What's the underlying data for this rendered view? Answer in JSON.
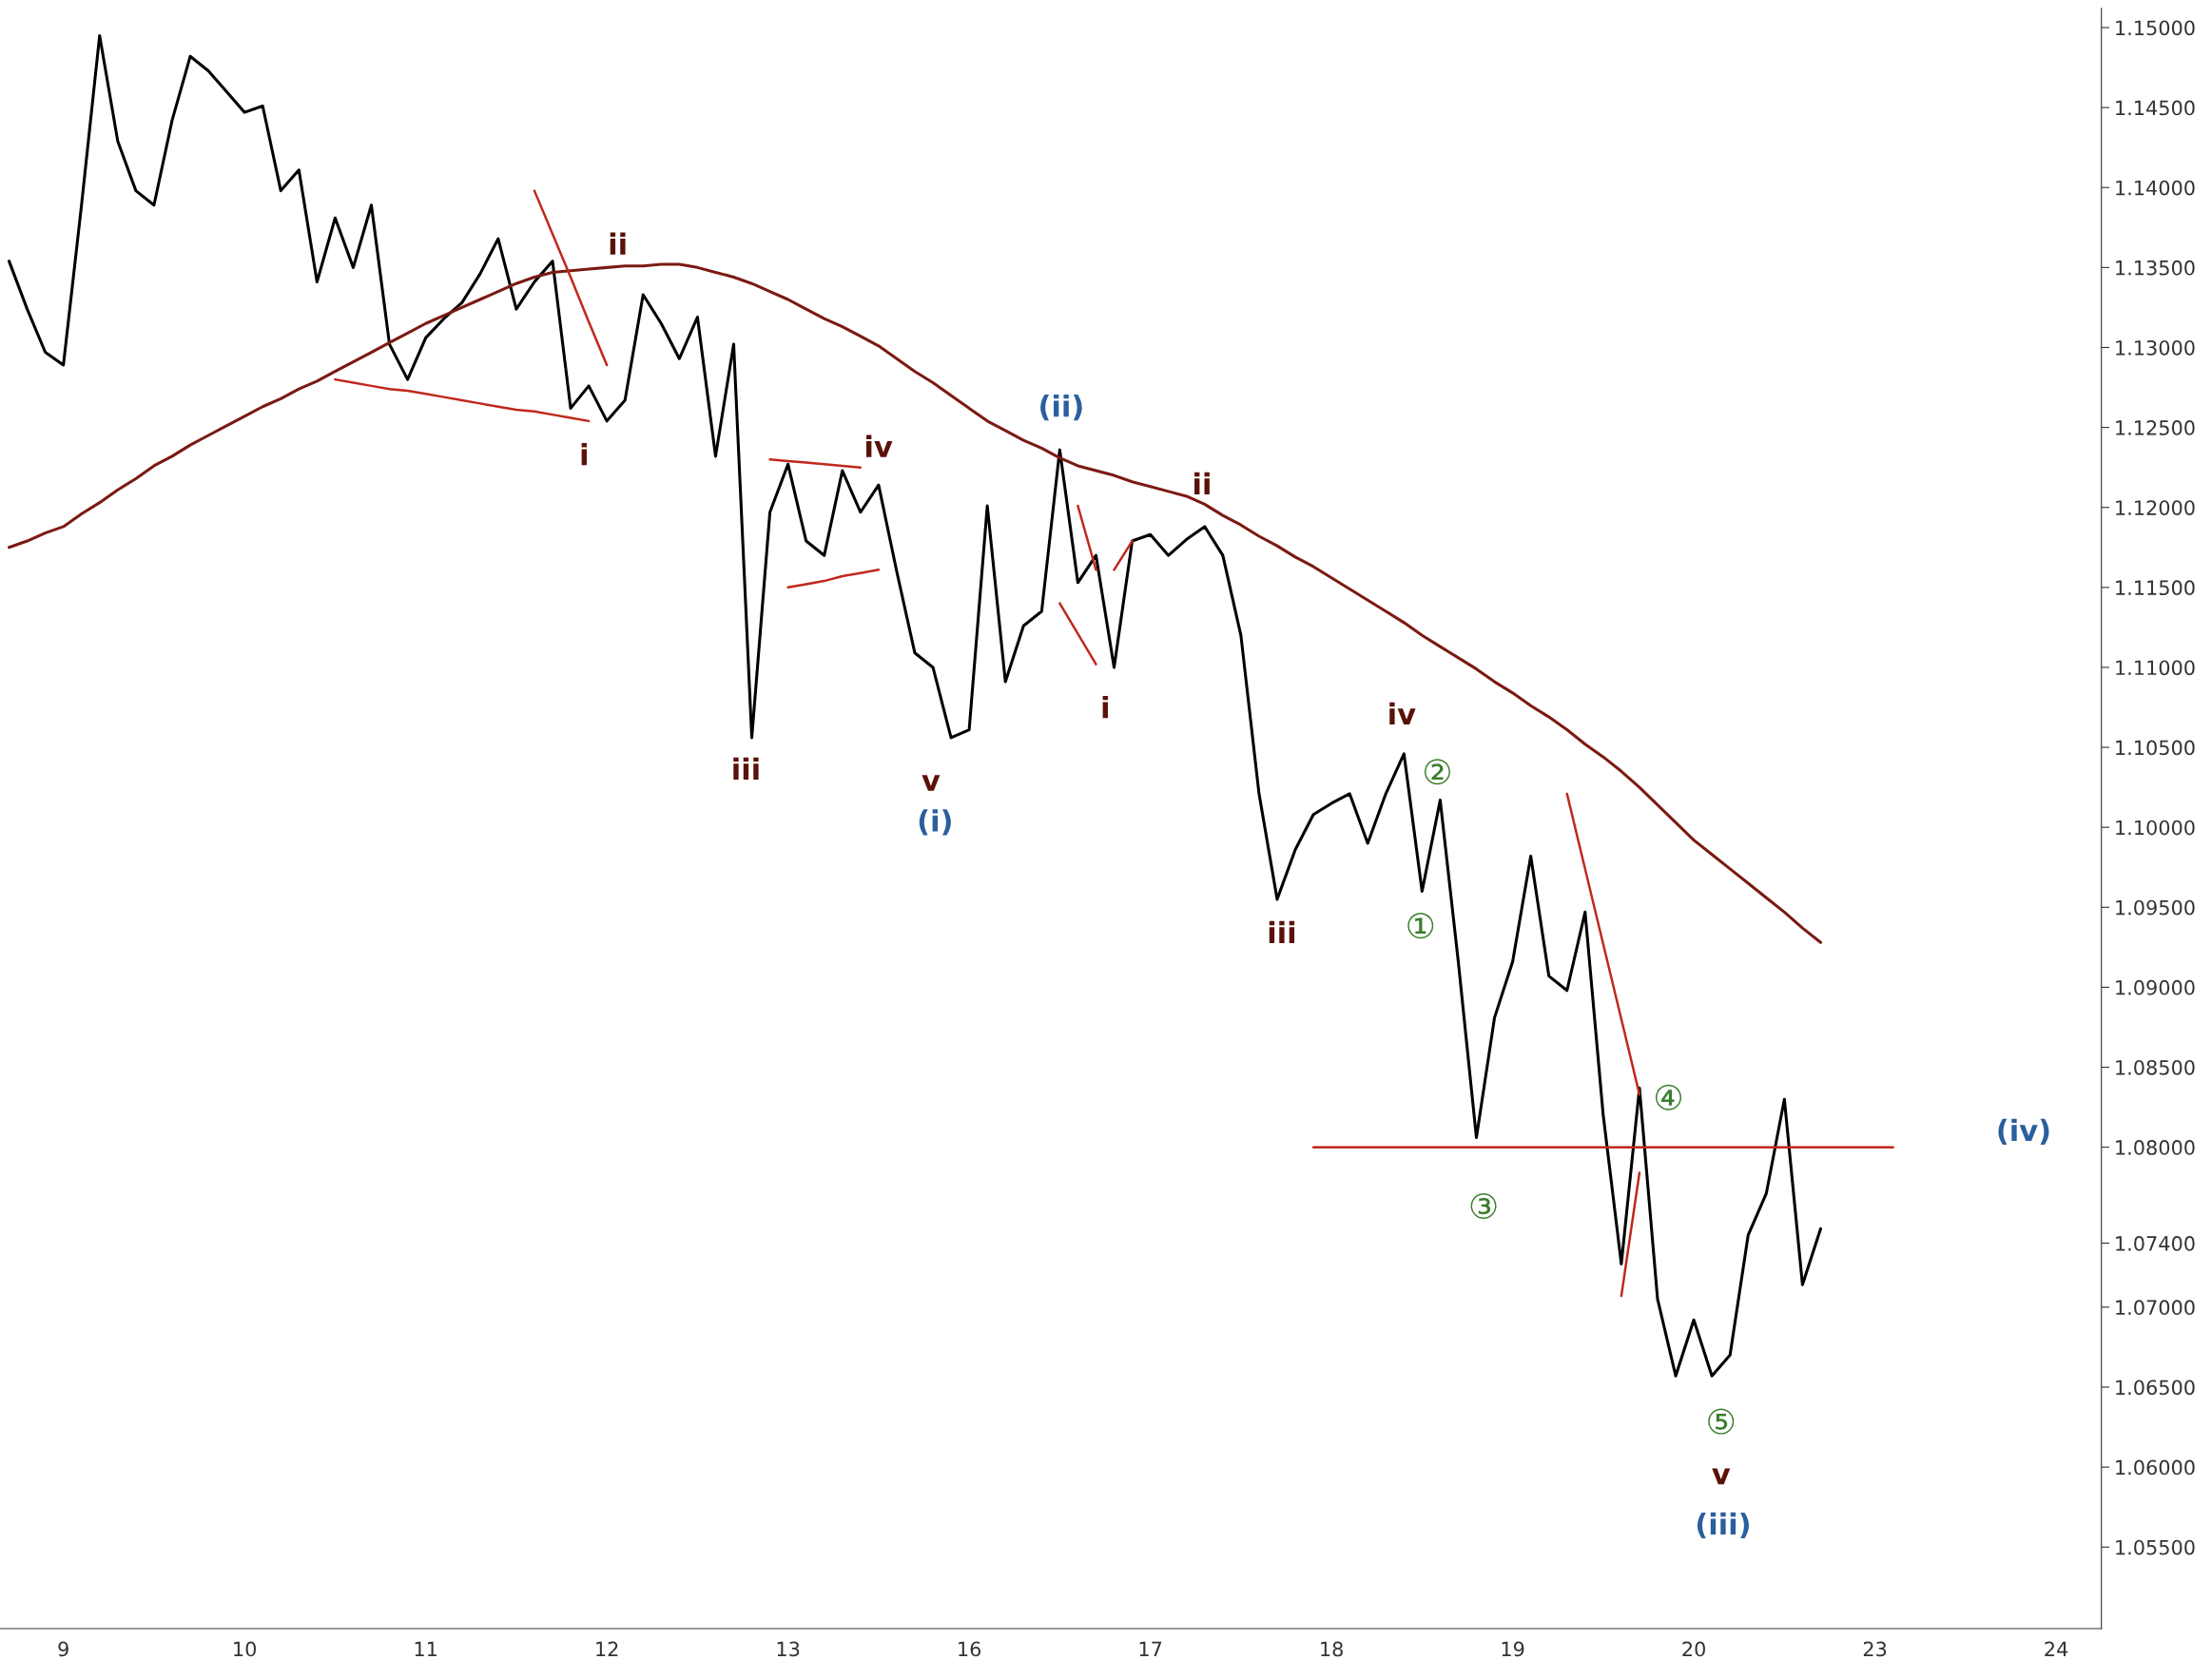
{
  "chart_data": {
    "type": "line",
    "legend": false,
    "grid": false,
    "ylim": [
      1.0499,
      1.1512
    ],
    "categories": [
      null,
      null,
      null,
      "9",
      null,
      null,
      null,
      null,
      null,
      null,
      null,
      null,
      null,
      "10",
      null,
      null,
      null,
      null,
      null,
      null,
      null,
      null,
      null,
      "11",
      null,
      null,
      null,
      null,
      null,
      null,
      null,
      null,
      null,
      "12",
      null,
      null,
      null,
      null,
      null,
      null,
      null,
      null,
      null,
      "13",
      null,
      null,
      null,
      null,
      null,
      null,
      null,
      null,
      null,
      "16",
      null,
      null,
      null,
      null,
      null,
      null,
      null,
      null,
      null,
      "17",
      null,
      null,
      null,
      null,
      null,
      null,
      null,
      null,
      null,
      "18",
      null,
      null,
      null,
      null,
      null,
      null,
      null,
      null,
      null,
      "19",
      null,
      null,
      null,
      null,
      null,
      null,
      null,
      null,
      null,
      "20",
      null,
      null,
      null,
      null,
      null,
      null,
      null,
      null,
      null,
      "23",
      null,
      null,
      null,
      null,
      null,
      null,
      null,
      null,
      null,
      "24",
      null,
      null
    ],
    "yticks": [
      {
        "value": 1.055,
        "label": "1.05500"
      },
      {
        "value": 1.06,
        "label": "1.06000"
      },
      {
        "value": 1.065,
        "label": "1.06500"
      },
      {
        "value": 1.07,
        "label": "1.07000"
      },
      {
        "value": 1.074,
        "label": "1.07400"
      },
      {
        "value": 1.08,
        "label": "1.08000"
      },
      {
        "value": 1.085,
        "label": "1.08500"
      },
      {
        "value": 1.09,
        "label": "1.09000"
      },
      {
        "value": 1.095,
        "label": "1.09500"
      },
      {
        "value": 1.1,
        "label": "1.10000"
      },
      {
        "value": 1.105,
        "label": "1.10500"
      },
      {
        "value": 1.11,
        "label": "1.11000"
      },
      {
        "value": 1.115,
        "label": "1.11500"
      },
      {
        "value": 1.12,
        "label": "1.12000"
      },
      {
        "value": 1.125,
        "label": "1.12500"
      },
      {
        "value": 1.13,
        "label": "1.13000"
      },
      {
        "value": 1.135,
        "label": "1.13500"
      },
      {
        "value": 1.14,
        "label": "1.14000"
      },
      {
        "value": 1.145,
        "label": "1.14500"
      },
      {
        "value": 1.15,
        "label": "1.15000"
      }
    ],
    "series": [
      {
        "color": "#000000",
        "values": [
          1.1354,
          1.1324,
          1.1297,
          1.1289,
          1.1389,
          1.1495,
          1.1429,
          1.1398,
          1.1389,
          1.1442,
          1.1482,
          1.1473,
          1.146,
          1.1447,
          1.1451,
          1.1398,
          1.1411,
          1.1341,
          1.1381,
          1.135,
          1.1389,
          1.1302,
          1.128,
          1.1306,
          1.1318,
          1.1328,
          1.1346,
          1.1368,
          1.1324,
          1.1341,
          1.1354,
          1.1262,
          1.1276,
          1.1254,
          1.1267,
          1.1333,
          1.1315,
          1.1293,
          1.1319,
          1.1232,
          1.1302,
          1.1056,
          1.1197,
          1.1227,
          1.1179,
          1.117,
          1.1223,
          1.1197,
          1.1214,
          1.116,
          1.1109,
          1.11,
          1.1056,
          1.1061,
          1.1201,
          1.1091,
          1.1126,
          1.1135,
          1.1236,
          1.1153,
          1.117,
          1.11,
          1.1179,
          1.1183,
          1.117,
          1.118,
          1.1188,
          1.117,
          1.112,
          1.1021,
          1.0955,
          1.0986,
          1.1008,
          1.1015,
          1.1021,
          1.099,
          1.1021,
          1.1046,
          1.096,
          1.1017,
          1.0916,
          1.0806,
          1.0881,
          1.0916,
          1.0982,
          1.0907,
          1.0898,
          1.0947,
          1.082,
          1.0727,
          1.0837,
          1.0705,
          1.0657,
          1.0692,
          1.0657,
          1.067,
          1.0745,
          1.0771,
          1.083,
          1.0714,
          1.0749,
          null,
          null,
          null,
          null,
          null,
          null,
          null,
          null,
          null,
          null,
          null,
          null,
          null,
          null,
          null
        ]
      },
      {
        "color": "#7b1a12",
        "values": [
          1.1175,
          1.1179,
          1.1184,
          1.1188,
          1.1196,
          1.1203,
          1.1211,
          1.1218,
          1.1226,
          1.1232,
          1.1239,
          1.1245,
          1.1251,
          1.1257,
          1.1263,
          1.1268,
          1.1274,
          1.1279,
          1.1285,
          1.1291,
          1.1297,
          1.1303,
          1.1309,
          1.1315,
          1.132,
          1.1325,
          1.133,
          1.1335,
          1.134,
          1.1344,
          1.1347,
          1.1348,
          1.1349,
          1.135,
          1.1351,
          1.1351,
          1.1352,
          1.1352,
          1.135,
          1.1347,
          1.1344,
          1.134,
          1.1335,
          1.133,
          1.1324,
          1.1318,
          1.1313,
          1.1307,
          1.1301,
          1.1293,
          1.1285,
          1.1278,
          1.127,
          1.1262,
          1.1254,
          1.1248,
          1.1242,
          1.1237,
          1.1231,
          1.1226,
          1.1223,
          1.122,
          1.1216,
          1.1213,
          1.121,
          1.1207,
          1.1202,
          1.1195,
          1.1189,
          1.1182,
          1.1176,
          1.1169,
          1.1163,
          1.1156,
          1.1149,
          1.1142,
          1.1135,
          1.1128,
          1.112,
          1.1113,
          1.1106,
          1.1099,
          1.1091,
          1.1084,
          1.1076,
          1.1069,
          1.1061,
          1.1052,
          1.1044,
          1.1035,
          1.1025,
          1.1014,
          1.1003,
          1.0992,
          1.0983,
          1.0974,
          1.0965,
          1.0956,
          1.0947,
          1.0937,
          1.0928,
          null,
          null,
          null,
          null,
          null,
          null,
          null,
          null,
          null,
          null,
          null,
          null,
          null,
          null,
          null
        ]
      },
      {
        "color": "#c0281c",
        "values": [
          null,
          null,
          null,
          null,
          null,
          null,
          null,
          null,
          null,
          null,
          null,
          null,
          null,
          null,
          null,
          null,
          null,
          null,
          null,
          null,
          null,
          null,
          null,
          null,
          null,
          null,
          null,
          null,
          null,
          1.1398,
          1.1371,
          1.1344,
          1.1316,
          1.1289,
          null,
          null,
          null,
          null,
          null,
          null,
          null,
          null,
          null,
          null,
          null,
          null,
          null,
          null,
          null,
          null,
          null,
          null,
          null,
          null,
          null,
          null,
          null,
          null,
          null,
          null,
          null,
          null,
          null,
          null,
          null,
          null,
          null,
          null,
          null,
          null,
          null,
          null,
          null,
          null,
          null,
          null,
          null,
          null,
          null,
          null,
          null,
          null,
          null,
          null,
          null,
          null,
          null,
          null,
          null,
          null,
          null,
          null,
          null,
          null,
          null,
          null,
          null,
          null,
          null,
          null,
          null,
          null,
          null,
          null,
          null,
          null,
          null,
          null,
          null,
          null,
          null,
          null,
          null,
          null,
          null,
          null
        ]
      },
      {
        "color": "#c0281c",
        "values": [
          null,
          null,
          null,
          null,
          null,
          null,
          null,
          null,
          null,
          null,
          null,
          null,
          null,
          null,
          null,
          null,
          null,
          null,
          1.128,
          1.1278,
          1.1276,
          1.1274,
          1.1273,
          1.1271,
          1.1269,
          1.1267,
          1.1265,
          1.1263,
          1.1261,
          1.126,
          1.1258,
          1.1256,
          1.1254,
          null,
          null,
          null,
          null,
          null,
          null,
          null,
          null,
          null,
          null,
          null,
          null,
          null,
          null,
          null,
          null,
          null,
          null,
          null,
          null,
          null,
          null,
          null,
          null,
          null,
          null,
          null,
          null,
          null,
          null,
          null,
          null,
          null,
          null,
          null,
          null,
          null,
          null,
          null,
          null,
          null,
          null,
          null,
          null,
          null,
          null,
          null,
          null,
          null,
          null,
          null,
          null,
          null,
          null,
          null,
          null,
          null,
          null,
          null,
          null,
          null,
          null,
          null,
          null,
          null,
          null,
          null,
          null,
          null,
          null,
          null,
          null,
          null,
          null,
          null,
          null,
          null,
          null,
          null,
          null,
          null,
          null,
          null
        ]
      },
      {
        "color": "#c0281c",
        "values": [
          null,
          null,
          null,
          null,
          null,
          null,
          null,
          null,
          null,
          null,
          null,
          null,
          null,
          null,
          null,
          null,
          null,
          null,
          null,
          null,
          null,
          null,
          null,
          null,
          null,
          null,
          null,
          null,
          null,
          null,
          null,
          null,
          null,
          null,
          null,
          null,
          null,
          null,
          null,
          null,
          null,
          null,
          1.123,
          1.1229,
          1.1228,
          1.1227,
          1.1226,
          1.1225,
          null,
          null,
          null,
          null,
          null,
          null,
          null,
          null,
          null,
          null,
          null,
          null,
          null,
          null,
          null,
          null,
          null,
          null,
          null,
          null,
          null,
          null,
          null,
          null,
          null,
          null,
          null,
          null,
          null,
          null,
          null,
          null,
          null,
          null,
          null,
          null,
          null,
          null,
          null,
          null,
          null,
          null,
          null,
          null,
          null,
          null,
          null,
          null,
          null,
          null,
          null,
          null,
          null,
          null,
          null,
          null,
          null,
          null,
          null,
          null,
          null,
          null,
          null,
          null,
          null,
          null,
          null,
          null
        ]
      },
      {
        "color": "#c0281c",
        "values": [
          null,
          null,
          null,
          null,
          null,
          null,
          null,
          null,
          null,
          null,
          null,
          null,
          null,
          null,
          null,
          null,
          null,
          null,
          null,
          null,
          null,
          null,
          null,
          null,
          null,
          null,
          null,
          null,
          null,
          null,
          null,
          null,
          null,
          null,
          null,
          null,
          null,
          null,
          null,
          null,
          null,
          null,
          null,
          1.115,
          1.1152,
          1.1154,
          1.1157,
          1.1159,
          1.1161,
          null,
          null,
          null,
          null,
          null,
          null,
          null,
          null,
          null,
          null,
          null,
          null,
          null,
          null,
          null,
          null,
          null,
          null,
          null,
          null,
          null,
          null,
          null,
          null,
          null,
          null,
          null,
          null,
          null,
          null,
          null,
          null,
          null,
          null,
          null,
          null,
          null,
          null,
          null,
          null,
          null,
          null,
          null,
          null,
          null,
          null,
          null,
          null,
          null,
          null,
          null,
          null,
          null,
          null,
          null,
          null,
          null,
          null,
          null,
          null,
          null,
          null,
          null,
          null,
          null,
          null,
          null
        ]
      },
      {
        "color": "#c0281c",
        "values": [
          null,
          null,
          null,
          null,
          null,
          null,
          null,
          null,
          null,
          null,
          null,
          null,
          null,
          null,
          null,
          null,
          null,
          null,
          null,
          null,
          null,
          null,
          null,
          null,
          null,
          null,
          null,
          null,
          null,
          null,
          null,
          null,
          null,
          null,
          null,
          null,
          null,
          null,
          null,
          null,
          null,
          null,
          null,
          null,
          null,
          null,
          null,
          null,
          null,
          null,
          null,
          null,
          null,
          null,
          null,
          null,
          null,
          null,
          null,
          1.1201,
          1.1161,
          null,
          null,
          null,
          null,
          null,
          null,
          null,
          null,
          null,
          null,
          null,
          null,
          null,
          null,
          null,
          null,
          null,
          null,
          null,
          null,
          null,
          null,
          null,
          null,
          null,
          null,
          null,
          null,
          null,
          null,
          null,
          null,
          null,
          null,
          null,
          null,
          null,
          null,
          null,
          null,
          null,
          null,
          null,
          null,
          null,
          null,
          null,
          null,
          null,
          null,
          null,
          null,
          null,
          null,
          null
        ]
      },
      {
        "color": "#c0281c",
        "values": [
          null,
          null,
          null,
          null,
          null,
          null,
          null,
          null,
          null,
          null,
          null,
          null,
          null,
          null,
          null,
          null,
          null,
          null,
          null,
          null,
          null,
          null,
          null,
          null,
          null,
          null,
          null,
          null,
          null,
          null,
          null,
          null,
          null,
          null,
          null,
          null,
          null,
          null,
          null,
          null,
          null,
          null,
          null,
          null,
          null,
          null,
          null,
          null,
          null,
          null,
          null,
          null,
          null,
          null,
          null,
          null,
          null,
          null,
          1.114,
          1.1121,
          1.1102,
          null,
          null,
          null,
          null,
          null,
          null,
          null,
          null,
          null,
          null,
          null,
          null,
          null,
          null,
          null,
          null,
          null,
          null,
          null,
          null,
          null,
          null,
          null,
          null,
          null,
          null,
          null,
          null,
          null,
          null,
          null,
          null,
          null,
          null,
          null,
          null,
          null,
          null,
          null,
          null,
          null,
          null,
          null,
          null,
          null,
          null,
          null,
          null,
          null,
          null,
          null,
          null,
          null,
          null,
          null
        ]
      },
      {
        "color": "#c0281c",
        "values": [
          null,
          null,
          null,
          null,
          null,
          null,
          null,
          null,
          null,
          null,
          null,
          null,
          null,
          null,
          null,
          null,
          null,
          null,
          null,
          null,
          null,
          null,
          null,
          null,
          null,
          null,
          null,
          null,
          null,
          null,
          null,
          null,
          null,
          null,
          null,
          null,
          null,
          null,
          null,
          null,
          null,
          null,
          null,
          null,
          null,
          null,
          null,
          null,
          null,
          null,
          null,
          null,
          null,
          null,
          null,
          null,
          null,
          null,
          null,
          null,
          null,
          1.1161,
          1.1179,
          null,
          null,
          null,
          null,
          null,
          null,
          null,
          null,
          null,
          null,
          null,
          null,
          null,
          null,
          null,
          null,
          null,
          null,
          null,
          null,
          null,
          null,
          null,
          null,
          null,
          null,
          null,
          null,
          null,
          null,
          null,
          null,
          null,
          null,
          null,
          null,
          null,
          null,
          null,
          null,
          null,
          null,
          null,
          null,
          null,
          null,
          null,
          null,
          null,
          null,
          null,
          null,
          null
        ]
      },
      {
        "color": "#c0281c",
        "values": [
          null,
          null,
          null,
          null,
          null,
          null,
          null,
          null,
          null,
          null,
          null,
          null,
          null,
          null,
          null,
          null,
          null,
          null,
          null,
          null,
          null,
          null,
          null,
          null,
          null,
          null,
          null,
          null,
          null,
          null,
          null,
          null,
          null,
          null,
          null,
          null,
          null,
          null,
          null,
          null,
          null,
          null,
          null,
          null,
          null,
          null,
          null,
          null,
          null,
          null,
          null,
          null,
          null,
          null,
          null,
          null,
          null,
          null,
          null,
          null,
          null,
          null,
          null,
          null,
          null,
          null,
          null,
          null,
          null,
          null,
          null,
          null,
          null,
          null,
          null,
          null,
          null,
          null,
          null,
          null,
          null,
          null,
          null,
          null,
          null,
          null,
          1.1021,
          1.0974,
          1.0927,
          1.088,
          1.0833,
          null,
          null,
          null,
          null,
          null,
          null,
          null,
          null,
          null,
          null,
          null,
          null,
          null,
          null,
          null,
          null,
          null,
          null,
          null,
          null,
          null,
          null,
          null,
          null,
          null
        ]
      },
      {
        "color": "#c0281c",
        "values": [
          null,
          null,
          null,
          null,
          null,
          null,
          null,
          null,
          null,
          null,
          null,
          null,
          null,
          null,
          null,
          null,
          null,
          null,
          null,
          null,
          null,
          null,
          null,
          null,
          null,
          null,
          null,
          null,
          null,
          null,
          null,
          null,
          null,
          null,
          null,
          null,
          null,
          null,
          null,
          null,
          null,
          null,
          null,
          null,
          null,
          null,
          null,
          null,
          null,
          null,
          null,
          null,
          null,
          null,
          null,
          null,
          null,
          null,
          null,
          null,
          null,
          null,
          null,
          null,
          null,
          null,
          null,
          null,
          null,
          null,
          null,
          null,
          null,
          null,
          null,
          null,
          null,
          null,
          null,
          null,
          null,
          null,
          null,
          null,
          null,
          null,
          null,
          null,
          null,
          1.0707,
          1.0784,
          null,
          null,
          null,
          null,
          null,
          null,
          null,
          null,
          null,
          null,
          null,
          null,
          null,
          null,
          null,
          null,
          null,
          null,
          null,
          null,
          null,
          null,
          null,
          null,
          null
        ]
      },
      {
        "color": "#c0281c",
        "values": [
          null,
          null,
          null,
          null,
          null,
          null,
          null,
          null,
          null,
          null,
          null,
          null,
          null,
          null,
          null,
          null,
          null,
          null,
          null,
          null,
          null,
          null,
          null,
          null,
          null,
          null,
          null,
          null,
          null,
          null,
          null,
          null,
          null,
          null,
          null,
          null,
          null,
          null,
          null,
          null,
          null,
          null,
          null,
          null,
          null,
          null,
          null,
          null,
          null,
          null,
          null,
          null,
          null,
          null,
          null,
          null,
          null,
          null,
          null,
          null,
          null,
          null,
          null,
          null,
          null,
          null,
          null,
          null,
          null,
          null,
          null,
          null,
          1.08,
          1.08,
          1.08,
          1.08,
          1.08,
          1.08,
          1.08,
          1.08,
          1.08,
          1.08,
          1.08,
          1.08,
          1.08,
          1.08,
          1.08,
          1.08,
          1.08,
          1.08,
          1.08,
          1.08,
          1.08,
          1.08,
          1.08,
          1.08,
          1.08,
          1.08,
          1.08,
          1.08,
          1.08,
          1.08,
          1.08,
          1.08,
          1.08,
          null,
          null,
          null,
          null,
          null,
          null,
          null,
          null,
          null,
          null,
          null
        ]
      }
    ],
    "annotations": [
      "ii",
      "i",
      "iii",
      "iv",
      "v",
      "(i)",
      "(ii)",
      "i",
      "ii",
      "iii",
      "iv",
      "②",
      "①",
      "③",
      "④",
      "⑤",
      "v",
      "(iii)",
      "(iv)"
    ]
  }
}
